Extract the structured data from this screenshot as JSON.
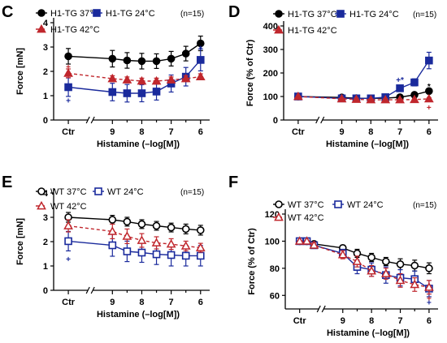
{
  "colors": {
    "black": "#000000",
    "blue": "#1a2a9c",
    "red": "#c0272d"
  },
  "chart_data": [
    {
      "panel": "C",
      "type": "line",
      "ylabel": "Force [mN]",
      "xlabel": "Histamine (–log[M])",
      "ylim": [
        0,
        4
      ],
      "yticks": [
        0,
        1,
        2,
        3,
        4
      ],
      "xticks": [
        {
          "x": 10.5,
          "label": "Ctr"
        },
        {
          "x": 9,
          "label": "9"
        },
        {
          "x": 8,
          "label": "8"
        },
        {
          "x": 7,
          "label": "7"
        },
        {
          "x": 6,
          "label": "6"
        }
      ],
      "n_label": "(n=15)",
      "x": [
        10.5,
        9,
        8.5,
        8,
        7.5,
        7,
        6.5,
        6
      ],
      "series": [
        {
          "name": "H1-TG 37°C",
          "color": "black",
          "marker": "circle",
          "filled": true,
          "values": [
            2.62,
            2.52,
            2.45,
            2.42,
            2.42,
            2.52,
            2.73,
            3.15
          ],
          "err": [
            0.32,
            0.34,
            0.32,
            0.32,
            0.3,
            0.3,
            0.3,
            0.3
          ]
        },
        {
          "name": "H1-TG 24°C",
          "color": "blue",
          "marker": "square",
          "filled": true,
          "values": [
            1.35,
            1.15,
            1.1,
            1.1,
            1.17,
            1.5,
            1.78,
            2.47
          ],
          "err": [
            0.38,
            0.36,
            0.36,
            0.35,
            0.35,
            0.35,
            0.38,
            0.45
          ]
        },
        {
          "name": "H1-TG 42°C",
          "color": "red",
          "marker": "triangle",
          "filled": true,
          "dashed": true,
          "values": [
            1.92,
            1.7,
            1.65,
            1.6,
            1.6,
            1.65,
            1.7,
            1.78
          ],
          "err": [
            0.18,
            0.12,
            0.12,
            0.12,
            0.12,
            0.12,
            0.12,
            0.12
          ]
        }
      ],
      "annotations": [
        {
          "x": 10.5,
          "y": 0.82,
          "text": "+",
          "color": "blue"
        },
        {
          "x": 10.5,
          "y": 2.2,
          "text": "+",
          "color": "red"
        },
        {
          "x": 6,
          "y": 2.95,
          "text": "*",
          "color": "blue"
        }
      ]
    },
    {
      "panel": "D",
      "type": "line",
      "ylabel": "Force (% of Ctr)",
      "xlabel": "Histamine (–log[M])",
      "ylim": [
        0,
        400
      ],
      "yticks": [
        0,
        100,
        200,
        300,
        400
      ],
      "xticks": [
        {
          "x": 10.5,
          "label": "Ctr"
        },
        {
          "x": 9,
          "label": "9"
        },
        {
          "x": 8,
          "label": "8"
        },
        {
          "x": 7,
          "label": "7"
        },
        {
          "x": 6,
          "label": "6"
        }
      ],
      "n_label": "(n=15)",
      "x": [
        10.5,
        9,
        8.5,
        8,
        7.5,
        7,
        6.5,
        6
      ],
      "series": [
        {
          "name": "H1-TG 37°C",
          "color": "black",
          "marker": "circle",
          "filled": true,
          "values": [
            100,
            96,
            93,
            92,
            93,
            97,
            107,
            123
          ],
          "err": [
            0,
            4,
            4,
            4,
            4,
            5,
            6,
            8
          ]
        },
        {
          "name": "H1-TG 24°C",
          "color": "blue",
          "marker": "square",
          "filled": true,
          "values": [
            100,
            92,
            92,
            92,
            97,
            135,
            160,
            253
          ],
          "err": [
            0,
            5,
            5,
            5,
            6,
            12,
            15,
            35
          ]
        },
        {
          "name": "H1-TG 42°C",
          "color": "red",
          "marker": "triangle",
          "filled": true,
          "dashed": true,
          "values": [
            100,
            90,
            88,
            86,
            86,
            86,
            87,
            90
          ],
          "err": [
            0,
            4,
            4,
            4,
            4,
            4,
            4,
            5
          ]
        }
      ],
      "annotations": [
        {
          "x": 7,
          "y": 172,
          "text": "+*",
          "color": "blue"
        },
        {
          "x": 6,
          "y": 145,
          "text": "*",
          "color": "black"
        },
        {
          "x": 6,
          "y": 55,
          "text": "+",
          "color": "red"
        }
      ]
    },
    {
      "panel": "E",
      "type": "line",
      "ylabel": "Force [mN]",
      "xlabel": "Histamine (–log[M])",
      "ylim": [
        0,
        4
      ],
      "yticks": [
        0,
        1,
        2,
        3,
        4
      ],
      "xticks": [
        {
          "x": 10.5,
          "label": "Ctr"
        },
        {
          "x": 9,
          "label": "9"
        },
        {
          "x": 8,
          "label": "8"
        },
        {
          "x": 7,
          "label": "7"
        },
        {
          "x": 6,
          "label": "6"
        }
      ],
      "n_label": "(n=15)",
      "x": [
        10.5,
        9,
        8.5,
        8,
        7.5,
        7,
        6.5,
        6
      ],
      "series": [
        {
          "name": "WT 37°C",
          "color": "black",
          "marker": "circle",
          "filled": false,
          "values": [
            3.0,
            2.9,
            2.82,
            2.72,
            2.65,
            2.58,
            2.52,
            2.47
          ],
          "err": [
            0.2,
            0.18,
            0.18,
            0.18,
            0.18,
            0.18,
            0.2,
            0.2
          ]
        },
        {
          "name": "WT 24°C",
          "color": "blue",
          "marker": "square",
          "filled": false,
          "values": [
            2.02,
            1.85,
            1.6,
            1.55,
            1.48,
            1.45,
            1.42,
            1.42
          ],
          "err": [
            0.4,
            0.45,
            0.42,
            0.4,
            0.42,
            0.45,
            0.42,
            0.42
          ]
        },
        {
          "name": "WT 42°C",
          "color": "red",
          "marker": "triangle",
          "filled": false,
          "dashed": true,
          "values": [
            2.65,
            2.42,
            2.22,
            2.05,
            1.95,
            1.9,
            1.82,
            1.75
          ],
          "err": [
            0.25,
            0.3,
            0.3,
            0.28,
            0.25,
            0.22,
            0.2,
            0.18
          ]
        }
      ],
      "annotations": [
        {
          "x": 10.5,
          "y": 1.3,
          "text": "+",
          "color": "blue"
        }
      ]
    },
    {
      "panel": "F",
      "type": "line",
      "ylabel": "Force (% of Ctr)",
      "xlabel": "Histamine (–log[M])",
      "ylim": [
        50,
        120
      ],
      "yticks": [
        60,
        80,
        100,
        120
      ],
      "xticks": [
        {
          "x": 10.5,
          "label": "Ctr"
        },
        {
          "x": 9,
          "label": "9"
        },
        {
          "x": 8,
          "label": "8"
        },
        {
          "x": 7,
          "label": "7"
        },
        {
          "x": 6,
          "label": "6"
        }
      ],
      "n_label": "(n=15)",
      "x": [
        10.5,
        10.25,
        10,
        9,
        8.5,
        8,
        7.5,
        7,
        6.5,
        6
      ],
      "series": [
        {
          "name": "WT 37°C",
          "color": "black",
          "marker": "circle",
          "filled": false,
          "values": [
            100,
            100,
            98,
            95,
            91,
            88,
            85,
            83,
            82,
            80
          ],
          "err": [
            0,
            0,
            1,
            2,
            3,
            3,
            3,
            4,
            4,
            4
          ]
        },
        {
          "name": "WT 24°C",
          "color": "blue",
          "marker": "square",
          "filled": false,
          "values": [
            100,
            100,
            97,
            91,
            81,
            79,
            75,
            73,
            72,
            65
          ],
          "err": [
            0,
            0,
            2,
            3,
            5,
            5,
            6,
            6,
            6,
            6
          ]
        },
        {
          "name": "WT 42°C",
          "color": "red",
          "marker": "triangle",
          "filled": false,
          "dashed": true,
          "values": [
            100,
            100,
            97,
            90,
            85,
            78,
            76,
            71,
            68,
            66
          ],
          "err": [
            0,
            0,
            2,
            3,
            4,
            4,
            4,
            5,
            5,
            5
          ]
        }
      ],
      "annotations": [
        {
          "x": 6,
          "y": 58,
          "text": "+",
          "color": "red"
        },
        {
          "x": 6,
          "y": 55,
          "text": "+",
          "color": "blue"
        }
      ]
    }
  ]
}
